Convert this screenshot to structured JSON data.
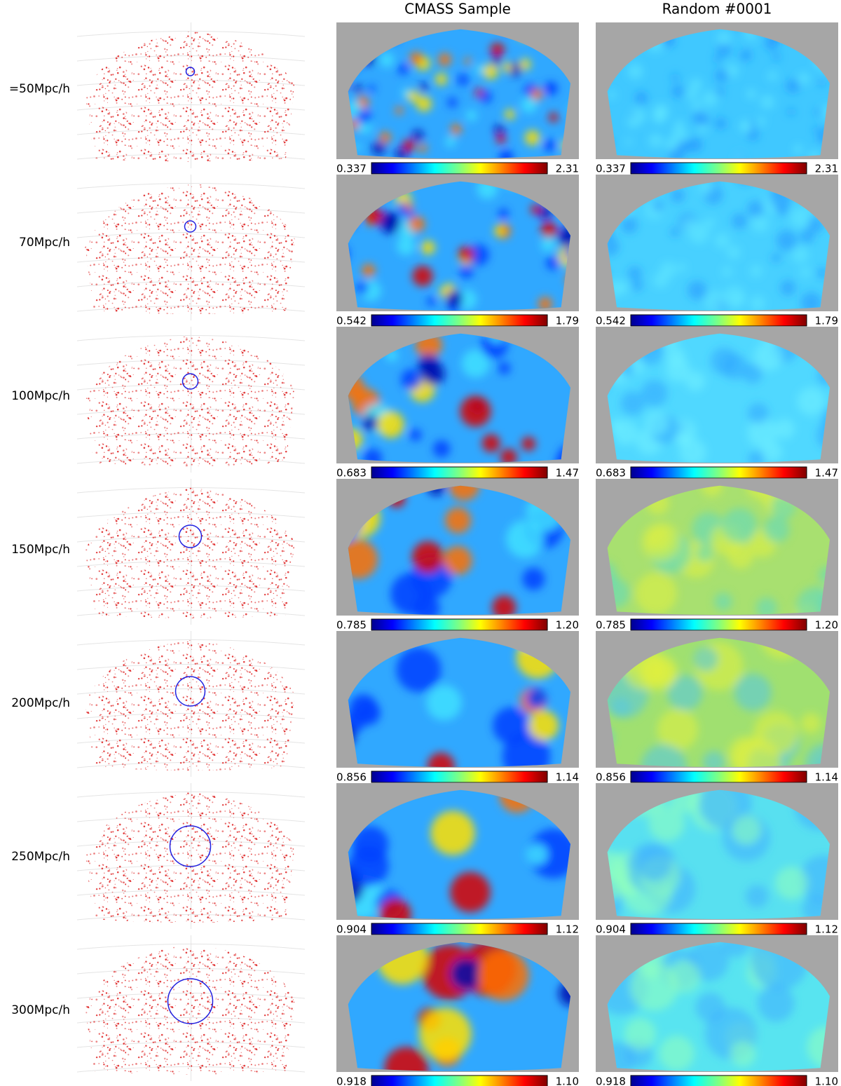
{
  "columns": [
    "CMASS Sample",
    "Random #0001"
  ],
  "rows": [
    {
      "label": "=50Mpc/h",
      "colorbar": {
        "min": "0.337",
        "max": "2.31"
      }
    },
    {
      "label": "70Mpc/h",
      "colorbar": {
        "min": "0.542",
        "max": "1.79"
      }
    },
    {
      "label": "100Mpc/h",
      "colorbar": {
        "min": "0.683",
        "max": "1.47"
      }
    },
    {
      "label": "150Mpc/h",
      "colorbar": {
        "min": "0.785",
        "max": "1.20"
      }
    },
    {
      "label": "200Mpc/h",
      "colorbar": {
        "min": "0.856",
        "max": "1.14"
      }
    },
    {
      "label": "250Mpc/h",
      "colorbar": {
        "min": "0.904",
        "max": "1.12"
      }
    },
    {
      "label": "300Mpc/h",
      "colorbar": {
        "min": "0.918",
        "max": "1.10"
      }
    }
  ]
}
